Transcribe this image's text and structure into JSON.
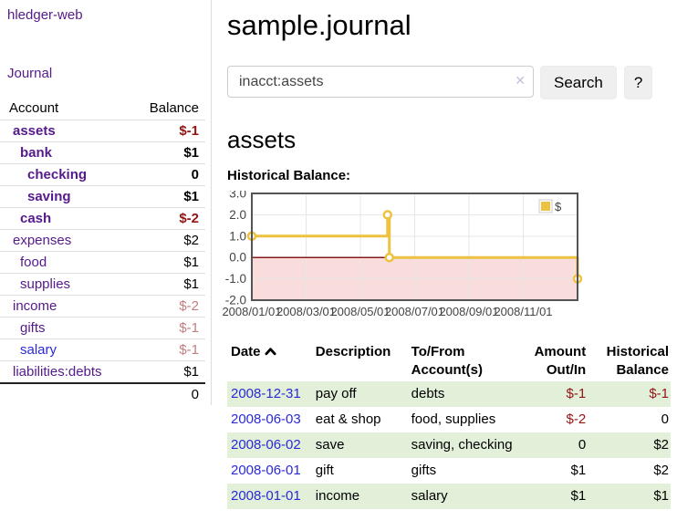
{
  "colors": {
    "accent_purple": "#551a8b",
    "link_blue": "#2a29d8",
    "negative_strong": "#941313",
    "negative_soft": "#c27d7d",
    "row_highlight": "#e2f0da"
  },
  "sidebar": {
    "brand": "hledger-web",
    "nav_journal": "Journal",
    "accounts_table": {
      "header_account": "Account",
      "header_balance": "Balance",
      "rows": [
        {
          "name": "assets",
          "depth": 0,
          "balance": "$-1",
          "bold": true,
          "neg": "strong"
        },
        {
          "name": "bank",
          "depth": 1,
          "balance": "$1",
          "bold": true,
          "neg": "none"
        },
        {
          "name": "checking",
          "depth": 2,
          "balance": "0",
          "bold": true,
          "neg": "none"
        },
        {
          "name": "saving",
          "depth": 2,
          "balance": "$1",
          "bold": true,
          "neg": "none"
        },
        {
          "name": "cash",
          "depth": 1,
          "balance": "$-2",
          "bold": true,
          "neg": "strong"
        },
        {
          "name": "expenses",
          "depth": 0,
          "balance": "$2",
          "bold": false,
          "neg": "none"
        },
        {
          "name": "food",
          "depth": 1,
          "balance": "$1",
          "bold": false,
          "neg": "none"
        },
        {
          "name": "supplies",
          "depth": 1,
          "balance": "$1",
          "bold": false,
          "neg": "none"
        },
        {
          "name": "income",
          "depth": 0,
          "balance": "$-2",
          "bold": false,
          "neg": "soft"
        },
        {
          "name": "gifts",
          "depth": 1,
          "balance": "$-1",
          "bold": false,
          "neg": "soft"
        },
        {
          "name": "salary",
          "depth": 1,
          "balance": "$-1",
          "bold": false,
          "neg": "soft",
          "link_color": "blue"
        },
        {
          "name": "liabilities:debts",
          "depth": 0,
          "balance": "$1",
          "bold": false,
          "neg": "none"
        }
      ],
      "total": "0"
    }
  },
  "header": {
    "title": "sample.journal"
  },
  "search": {
    "value": "inacct:assets",
    "clear_icon": "✕",
    "button": "Search",
    "help": "?"
  },
  "account_page": {
    "title": "assets",
    "chart_label": "Historical Balance:"
  },
  "chart_data": {
    "type": "line",
    "step": true,
    "title": "Historical Balance",
    "series": [
      {
        "name": "$",
        "color": "#edc240",
        "points": [
          [
            "2008-01-01",
            1
          ],
          [
            "2008-06-01",
            2
          ],
          [
            "2008-06-03",
            0
          ],
          [
            "2008-12-31",
            -1
          ]
        ]
      }
    ],
    "xlim": [
      "2008-01-01",
      "2009-01-01"
    ],
    "ylim": [
      -2,
      3
    ],
    "y_ticks": [
      {
        "label": "3.0",
        "value": 3
      },
      {
        "label": "2.0",
        "value": 2
      },
      {
        "label": "1.0",
        "value": 1
      },
      {
        "label": "0.0",
        "value": 0
      },
      {
        "label": "-1.0",
        "value": -1
      },
      {
        "label": "-2.0",
        "value": -2
      }
    ],
    "x_ticks": [
      {
        "label": "2008/01/01",
        "date": "2008-01-01"
      },
      {
        "label": "2008/03/01",
        "date": "2008-03-01"
      },
      {
        "label": "2008/05/01",
        "date": "2008-05-01"
      },
      {
        "label": "2008/07/01",
        "date": "2008-07-01"
      },
      {
        "label": "2008/09/01",
        "date": "2008-09-01"
      },
      {
        "label": "2008/11/01",
        "date": "2008-11-01"
      }
    ],
    "grid": true,
    "legend": {
      "position": "top-right",
      "label": "$",
      "swatch_color": "#edc240"
    },
    "negative_fill": "#f9dcdc",
    "zero_line_color": "#8b1a1a",
    "border_color": "#545454",
    "grid_color": "#e7e7e7"
  },
  "register": {
    "headers": {
      "date": "Date",
      "description": "Description",
      "accounts": "To/From Account(s)",
      "amount": "Amount Out/In",
      "balance": "Historical Balance"
    },
    "rows": [
      {
        "date": "2008-12-31",
        "description": "pay off",
        "accounts": "debts",
        "amount": "$-1",
        "balance": "$-1"
      },
      {
        "date": "2008-06-03",
        "description": "eat & shop",
        "accounts": "food, supplies",
        "amount": "$-2",
        "balance": "0"
      },
      {
        "date": "2008-06-02",
        "description": "save",
        "accounts": "saving, checking",
        "amount": "0",
        "balance": "$2"
      },
      {
        "date": "2008-06-01",
        "description": "gift",
        "accounts": "gifts",
        "amount": "$1",
        "balance": "$2"
      },
      {
        "date": "2008-01-01",
        "description": "income",
        "accounts": "salary",
        "amount": "$1",
        "balance": "$1"
      }
    ]
  }
}
